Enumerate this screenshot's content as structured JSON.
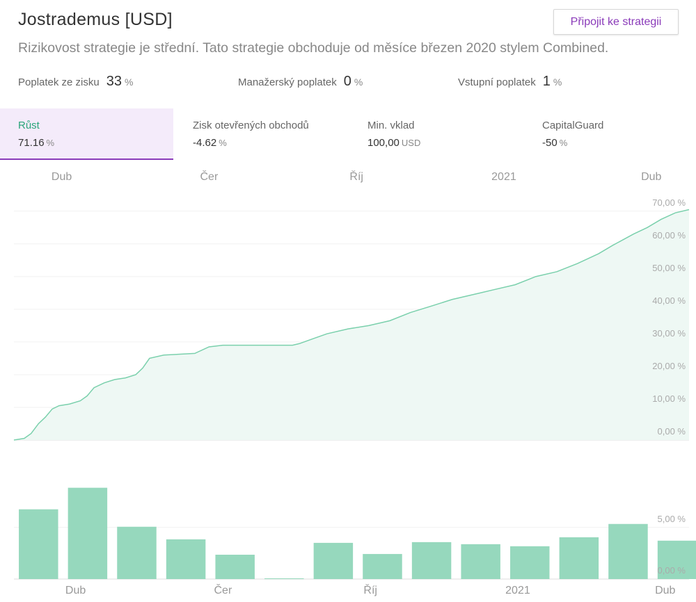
{
  "header": {
    "title": "Jostrademus [USD]",
    "button": "Připojit ke strategii",
    "subtitle": "Rizikovost strategie je střední. Tato strategie obchoduje od měsíce březen 2020 stylem Combined."
  },
  "fees": [
    {
      "label": "Poplatek ze zisku",
      "value": 33,
      "unit": "%"
    },
    {
      "label": "Manažerský poplatek",
      "value": 0,
      "unit": "%"
    },
    {
      "label": "Vstupní poplatek",
      "value": 1,
      "unit": "%"
    }
  ],
  "stats": [
    {
      "label": "Růst",
      "value": 71.16,
      "unit": "%"
    },
    {
      "label": "Zisk otevřených obchodů",
      "value": -4.62,
      "unit": "%"
    },
    {
      "label": "Min. vklad",
      "value": "100,00",
      "unit": "USD"
    },
    {
      "label": "CapitalGuard",
      "value": -50,
      "unit": "%"
    }
  ],
  "chart_data": [
    {
      "type": "line",
      "color": "#7ad0ac",
      "fill": "#eef8f4",
      "x": [
        0,
        0.21,
        0.35,
        0.5,
        0.64,
        0.78,
        0.92,
        1.13,
        1.35,
        1.49,
        1.63,
        1.84,
        2.05,
        2.27,
        2.48,
        2.62,
        2.76,
        3.05,
        3.68,
        3.97,
        4.25,
        5.67,
        5.81,
        6.09,
        6.37,
        6.8,
        7.22,
        7.65,
        8.07,
        8.5,
        8.92,
        9.49,
        9.77,
        10.2,
        10.62,
        11.05,
        11.47,
        11.9,
        12.18,
        12.61,
        12.89,
        13.17,
        13.46,
        13.74
      ],
      "values": [
        0,
        0.5,
        2,
        5,
        7,
        9.5,
        10.5,
        11,
        12,
        13.5,
        16,
        17.5,
        18.5,
        19,
        20,
        22,
        25,
        26,
        26.5,
        28.5,
        29,
        29,
        29.5,
        31,
        32.5,
        34,
        35,
        36.5,
        39,
        41,
        43,
        45,
        46,
        47.5,
        50,
        51.5,
        54,
        57,
        59.5,
        63,
        65,
        67.5,
        69.5,
        70.5
      ],
      "xlim": [
        0,
        13.74
      ],
      "xticks": [
        {
          "value": 1,
          "label": "Dub"
        },
        {
          "value": 4,
          "label": "Čer"
        },
        {
          "value": 7,
          "label": "Říj"
        },
        {
          "value": 10,
          "label": "2021"
        },
        {
          "value": 13,
          "label": "Dub"
        }
      ],
      "ylim": [
        0,
        74
      ],
      "yticks": [
        {
          "value": 0,
          "label": "0,00 %"
        },
        {
          "value": 10,
          "label": "10,00 %"
        },
        {
          "value": 20,
          "label": "20,00 %"
        },
        {
          "value": 30,
          "label": "30,00 %"
        },
        {
          "value": 40,
          "label": "40,00 %"
        },
        {
          "value": 50,
          "label": "50,00 %"
        },
        {
          "value": 60,
          "label": "60,00 %"
        },
        {
          "value": 70,
          "label": "70,00 %"
        }
      ],
      "grid": true
    },
    {
      "type": "bar",
      "color": "#96d8bd",
      "x": [
        0.5,
        1.5,
        2.5,
        3.5,
        4.5,
        5.5,
        6.5,
        7.5,
        8.5,
        9.5,
        10.5,
        11.5,
        12.5,
        13.5
      ],
      "values": [
        6.76,
        8.85,
        5.07,
        3.85,
        2.36,
        0.07,
        3.51,
        2.43,
        3.58,
        3.38,
        3.18,
        4.05,
        5.34,
        3.72
      ],
      "xlim": [
        0,
        13.74
      ],
      "xticks": [
        {
          "value": 1,
          "label": "Dub"
        },
        {
          "value": 4,
          "label": "Čer"
        },
        {
          "value": 7,
          "label": "Říj"
        },
        {
          "value": 10,
          "label": "2021"
        },
        {
          "value": 13,
          "label": "Dub"
        }
      ],
      "ylim": [
        0,
        9.5
      ],
      "yticks": [
        {
          "value": 0,
          "label": "0,00 %"
        },
        {
          "value": 5,
          "label": "5,00 %"
        }
      ],
      "grid": true
    }
  ]
}
